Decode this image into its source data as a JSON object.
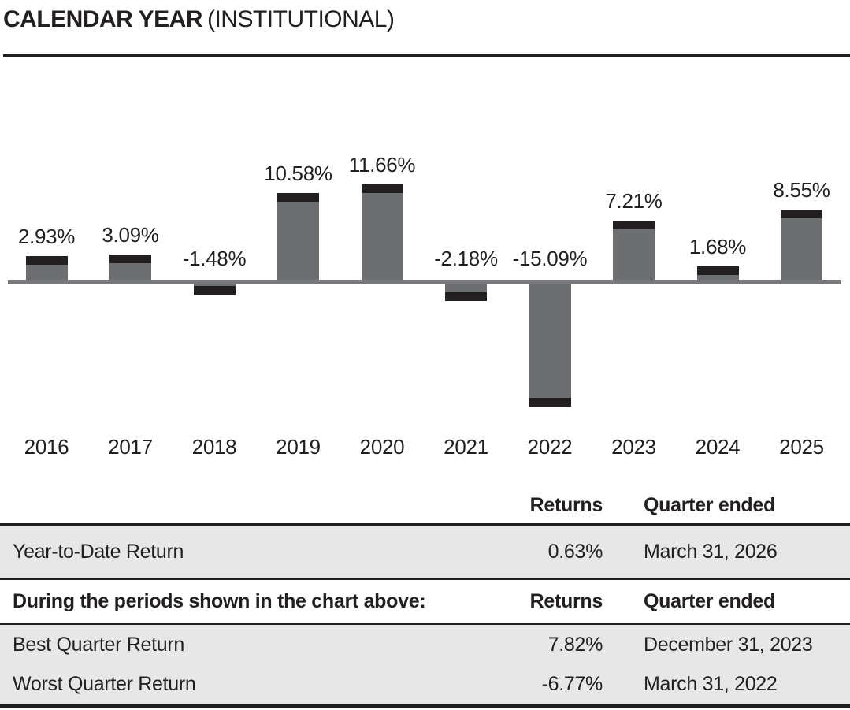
{
  "header": {
    "title_main": "CALENDAR YEAR",
    "title_qualifier": "(INSTITUTIONAL)"
  },
  "chart_data": {
    "type": "bar",
    "title": "CALENDAR YEAR (INSTITUTIONAL)",
    "categories": [
      "2016",
      "2017",
      "2018",
      "2019",
      "2020",
      "2021",
      "2022",
      "2023",
      "2024",
      "2025"
    ],
    "values": [
      2.93,
      3.09,
      -1.48,
      10.58,
      11.66,
      -2.18,
      -15.09,
      7.21,
      1.68,
      8.55
    ],
    "value_labels": [
      "2.93%",
      "3.09%",
      "-1.48%",
      "10.58%",
      "11.66%",
      "-2.18%",
      "-15.09%",
      "7.21%",
      "1.68%",
      "8.55%"
    ],
    "xlabel": "",
    "ylabel": "",
    "ylim": [
      -16,
      13
    ],
    "grid": false,
    "legend": "none",
    "colors": {
      "bar": "#6d6e71",
      "bar_cap": "#231f20",
      "axis_line": "#77787b",
      "text": "#231f20",
      "row_shade": "#e7e7e8"
    }
  },
  "table": {
    "header": {
      "returns": "Returns",
      "quarter": "Quarter ended"
    },
    "ytd": {
      "label": "Year-to-Date Return",
      "returns": "0.63%",
      "quarter": "March 31, 2026"
    },
    "periods_header": {
      "label": "During the periods shown in the chart above:",
      "returns": "Returns",
      "quarter": "Quarter ended"
    },
    "rows": [
      {
        "label": "Best Quarter Return",
        "returns": "7.82%",
        "quarter": "December 31, 2023"
      },
      {
        "label": "Worst Quarter Return",
        "returns": "-6.77%",
        "quarter": "March 31, 2022"
      }
    ]
  }
}
